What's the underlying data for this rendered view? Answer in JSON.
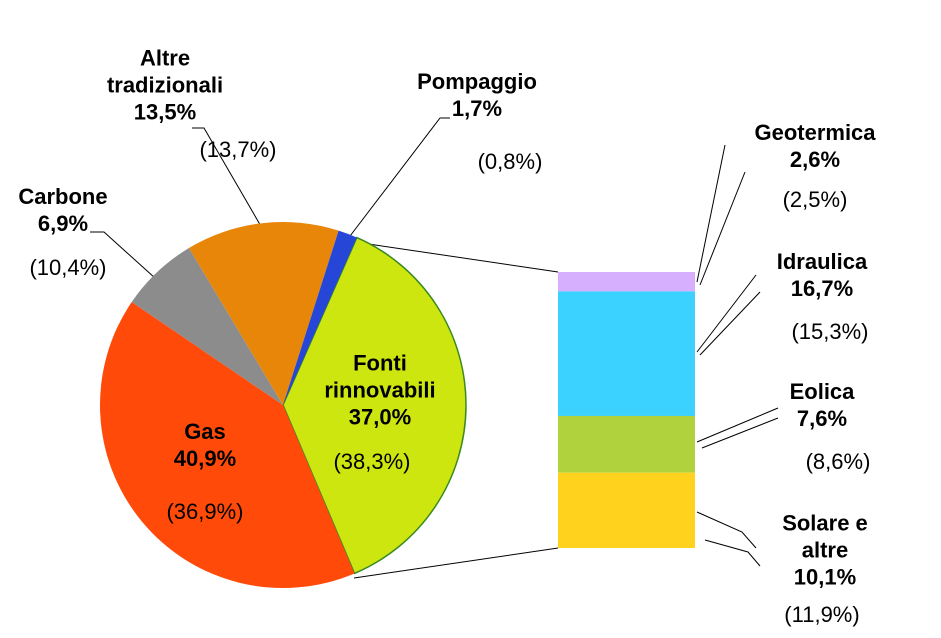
{
  "chart_data": {
    "type": "pie",
    "categories": [
      "Gas",
      "Carbone",
      "Altre tradizionali",
      "Pompaggio",
      "Fonti rinnovabili"
    ],
    "values": [
      40.9,
      6.9,
      13.5,
      1.7,
      37.0
    ],
    "value_labels": [
      "40,9%",
      "6,9%",
      "13,5%",
      "1,7%",
      "37,0%"
    ],
    "previous_values": [
      36.9,
      10.4,
      13.7,
      0.8,
      38.3
    ],
    "previous_labels": [
      "(36,9%)",
      "(10,4%)",
      "(13,7%)",
      "(0,8%)",
      "(38,3%)"
    ],
    "colors": [
      "#ff4a0a",
      "#8c8c8c",
      "#e8860a",
      "#2646d8",
      "#cde610"
    ],
    "breakdown": {
      "type": "stacked-bar",
      "categories": [
        "Geotermica",
        "Idraulica",
        "Eolica",
        "Solare e altre"
      ],
      "values": [
        2.6,
        16.7,
        7.6,
        10.1
      ],
      "value_labels": [
        "2,6%",
        "16,7%",
        "7,6%",
        "10,1%"
      ],
      "previous_values": [
        2.5,
        15.3,
        8.6,
        11.9
      ],
      "previous_labels": [
        "(2,5%)",
        "(15,3%)",
        "(8,6%)",
        "(11,9%)"
      ],
      "colors": [
        "#d6b0ff",
        "#3cd2ff",
        "#b0d23c",
        "#ffd21e"
      ]
    }
  }
}
